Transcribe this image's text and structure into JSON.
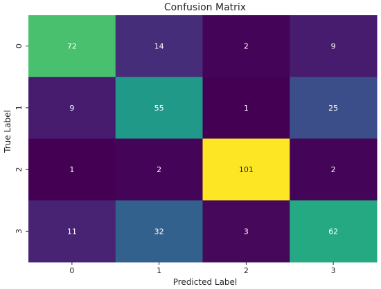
{
  "chart_data": {
    "type": "heatmap",
    "title": "Confusion Matrix",
    "xlabel": "Predicted Label",
    "ylabel": "True Label",
    "x_categories": [
      "0",
      "1",
      "2",
      "3"
    ],
    "y_categories": [
      "0",
      "1",
      "2",
      "3"
    ],
    "values": [
      [
        72,
        14,
        2,
        9
      ],
      [
        9,
        55,
        1,
        25
      ],
      [
        1,
        2,
        101,
        2
      ],
      [
        11,
        32,
        3,
        62
      ]
    ],
    "colormap": "viridis",
    "value_range": [
      1,
      101
    ],
    "colorbar": false,
    "grid": false
  }
}
